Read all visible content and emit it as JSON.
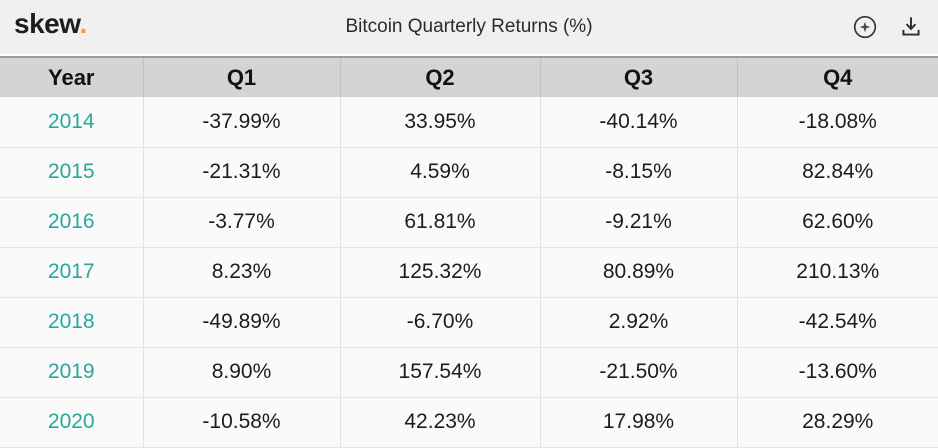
{
  "topbar": {
    "logo_text": "skew",
    "logo_dot": ".",
    "title": "Bitcoin Quarterly Returns (%)",
    "icons": [
      {
        "name": "star-circle-icon"
      },
      {
        "name": "download-icon"
      }
    ]
  },
  "colors": {
    "accent_teal": "#2aa79b",
    "logo_dot_orange": "#f0a030",
    "topbar_bg": "#f1f0ef",
    "header_bg": "#d6d4d3",
    "row_bg": "#fbfafa"
  },
  "chart_data": {
    "type": "table",
    "title": "Bitcoin Quarterly Returns (%)",
    "columns": [
      "Year",
      "Q1",
      "Q2",
      "Q3",
      "Q4"
    ],
    "rows": [
      [
        "2014",
        "-37.99%",
        "33.95%",
        "-40.14%",
        "-18.08%"
      ],
      [
        "2015",
        "-21.31%",
        "4.59%",
        "-8.15%",
        "82.84%"
      ],
      [
        "2016",
        "-3.77%",
        "61.81%",
        "-9.21%",
        "62.60%"
      ],
      [
        "2017",
        "8.23%",
        "125.32%",
        "80.89%",
        "210.13%"
      ],
      [
        "2018",
        "-49.89%",
        "-6.70%",
        "2.92%",
        "-42.54%"
      ],
      [
        "2019",
        "8.90%",
        "157.54%",
        "-21.50%",
        "-13.60%"
      ],
      [
        "2020",
        "-10.58%",
        "42.23%",
        "17.98%",
        "28.29%"
      ]
    ]
  }
}
